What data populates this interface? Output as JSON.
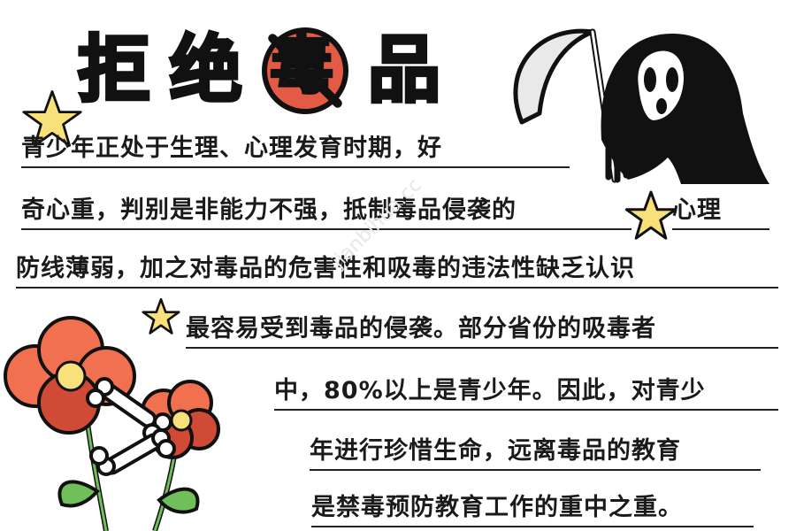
{
  "title": {
    "chars": [
      "拒",
      "绝",
      "毒",
      "品"
    ]
  },
  "body": {
    "lines": [
      "青少年正处于生理、心理发育时期，好",
      "奇心重，判别是非能力不强，抵制毒品侵袭的",
      "心理",
      "防线薄弱，加之对毒品的危害性和吸毒的违法性缺乏认识",
      "最容易受到毒品的侵袭。部分省份的吸毒者",
      "中，80%以上是青少年。因此，对青少",
      "年进行珍惜生命，远离毒品的教育",
      "是禁毒预防教育工作的重中之重。"
    ]
  },
  "watermark": "jianbihua.cc",
  "colors": {
    "title_fill": "#d7ea7d",
    "no_sign_red": "#e35a45",
    "star_yellow": "#f8e07a",
    "flower_red": "#f07050",
    "flower_dark": "#d04a35",
    "leaf_green": "#6fbf5a"
  },
  "icons": [
    "star-icon",
    "grim-reaper-icon",
    "scythe-icon",
    "flowers-icon",
    "bone-icon",
    "no-sign-icon"
  ]
}
